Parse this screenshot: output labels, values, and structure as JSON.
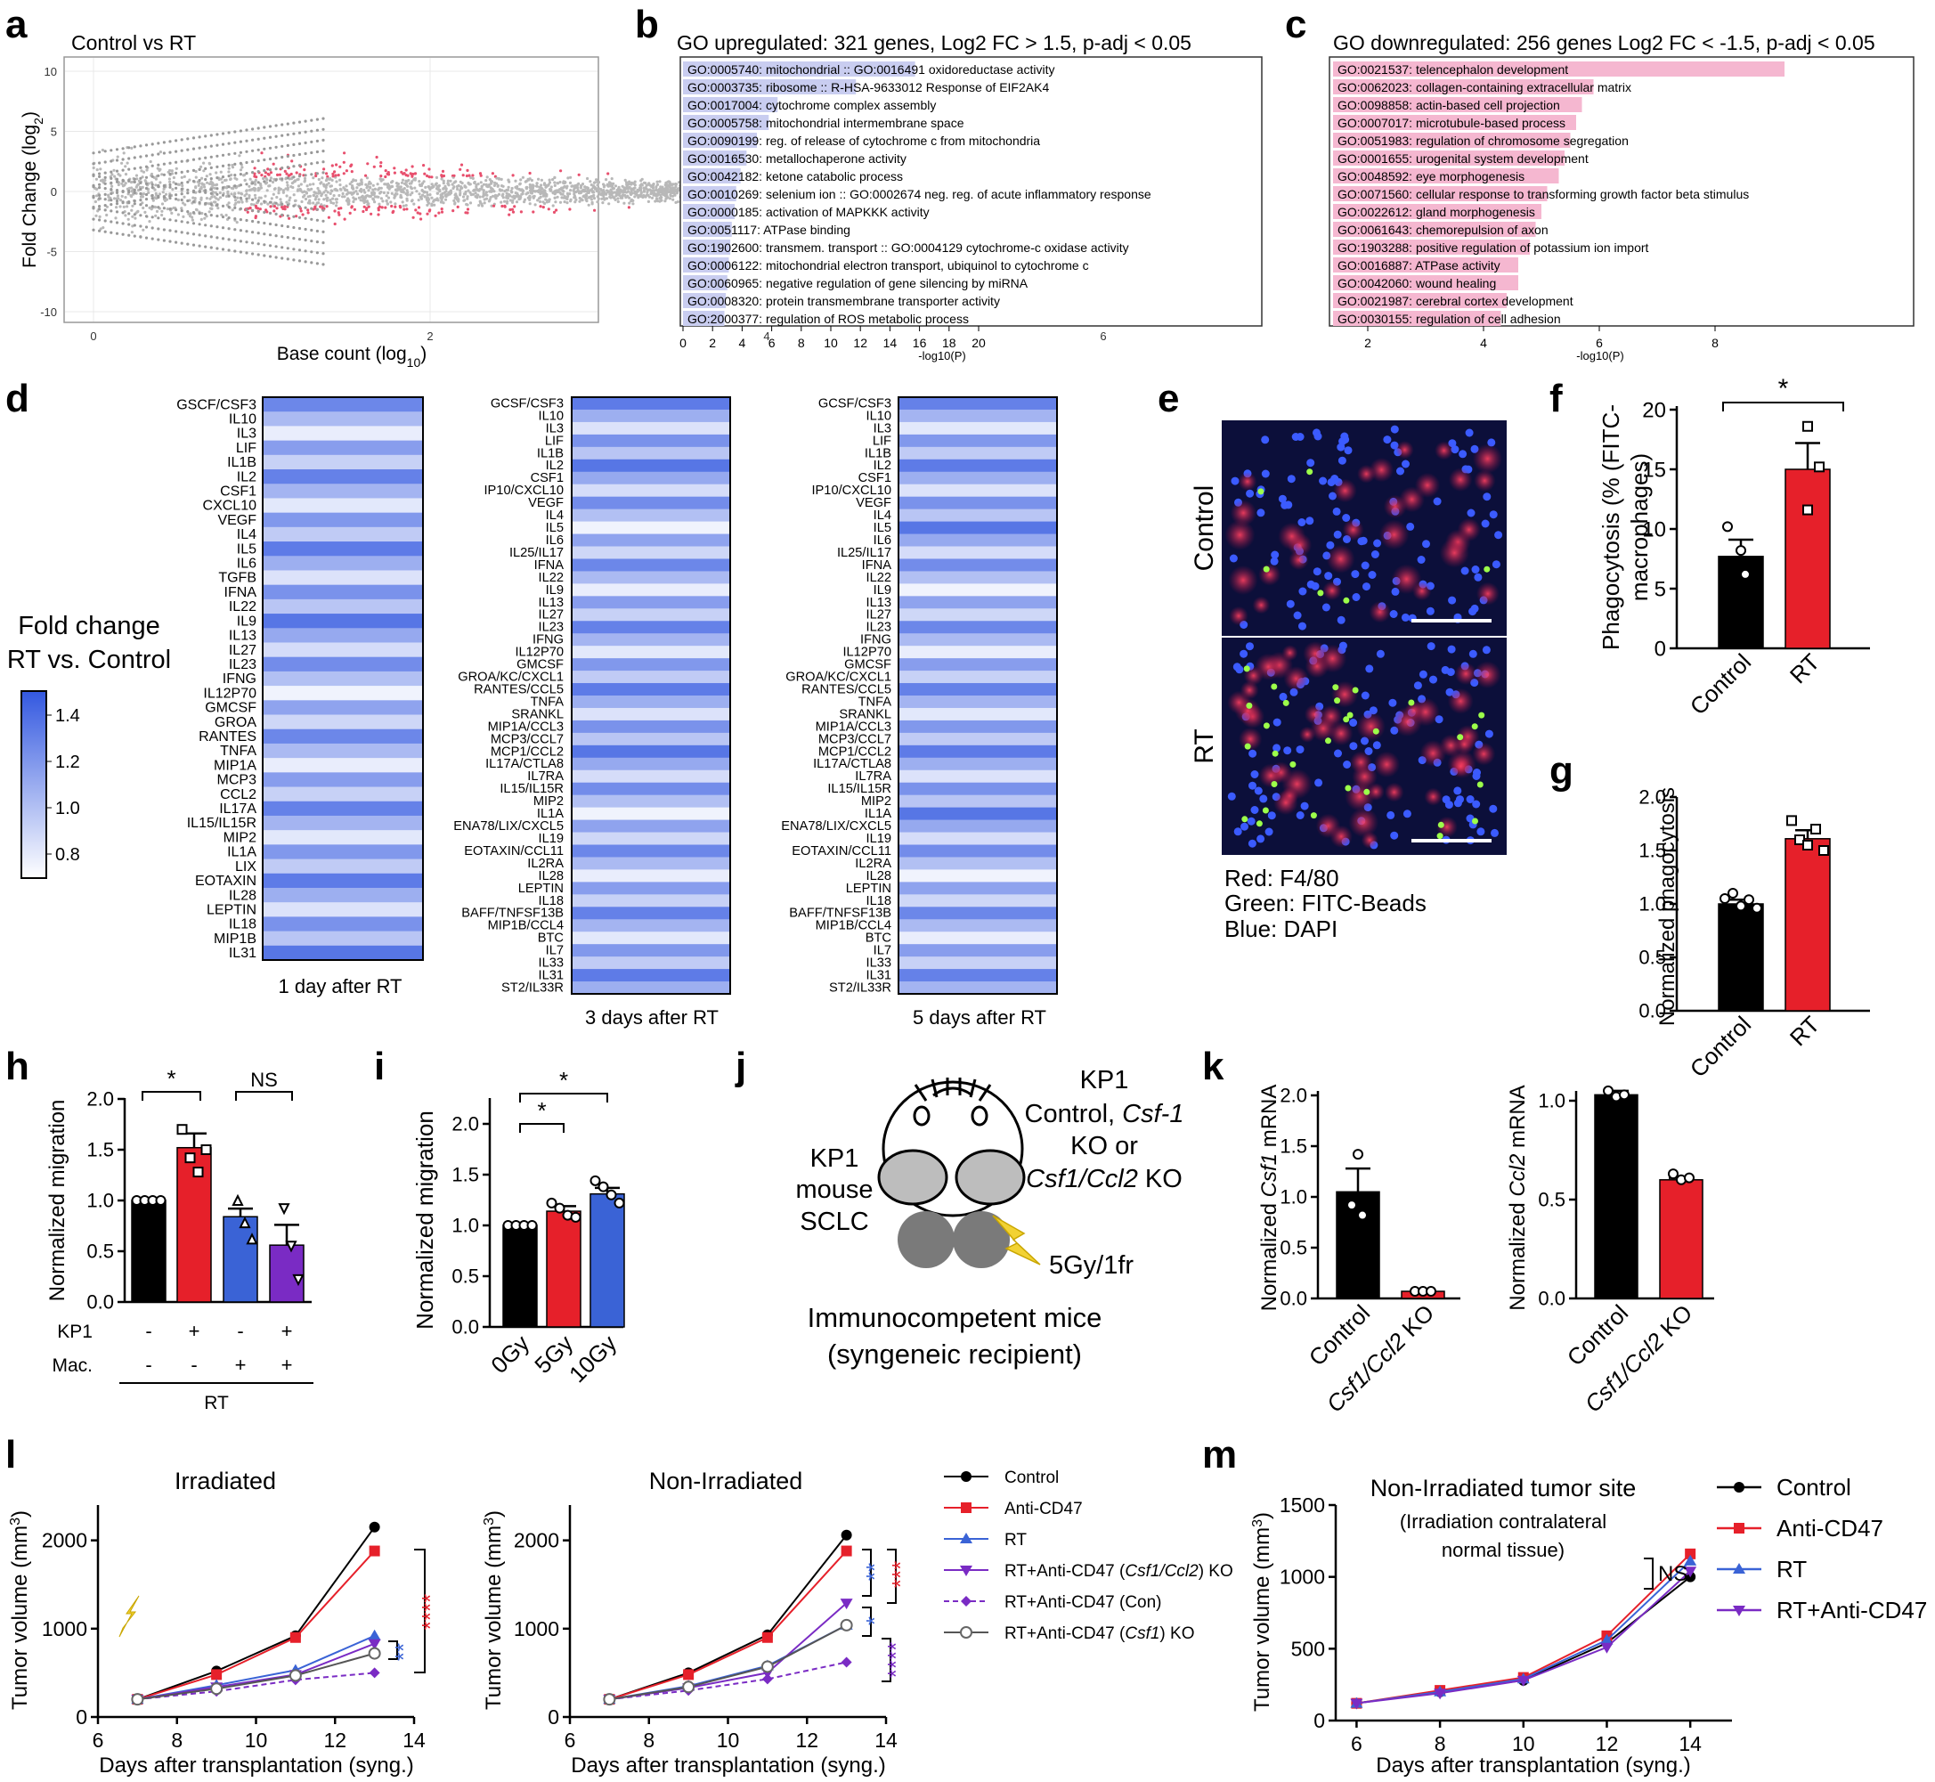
{
  "panel_letters": [
    "a",
    "b",
    "c",
    "d",
    "e",
    "f",
    "g",
    "h",
    "i",
    "j",
    "k",
    "l",
    "m"
  ],
  "a": {
    "title": "Control vs RT",
    "ylabel": "Fold Change (log",
    "ylabel_sub": "2",
    "ylabel_end": ")",
    "xlabel": "Base count (log",
    "xlabel_sub": "10",
    "xlabel_end": ")",
    "yticks": [
      "10",
      "5",
      "0",
      "-5",
      "-10"
    ],
    "xticks": [
      "0",
      "2",
      "4",
      "6"
    ]
  },
  "b": {
    "title": "GO upregulated: 321 genes, Log2 FC > 1.5, p-adj < 0.05",
    "xlabel": "-log10(P)",
    "xticks": [
      "0",
      "2",
      "4",
      "6",
      "8",
      "10",
      "12",
      "14",
      "16",
      "18",
      "20"
    ],
    "terms": [
      "GO:0005740: mitochondrial :: GO:0016491 oxidoreductase activity",
      "GO:0003735: ribosome :: R-HSA-9633012 Response of EIF2AK4",
      "GO:0017004: cytochrome complex assembly",
      "GO:0005758: mitochondrial intermembrane space",
      "GO:0090199: reg. of release of cytochrome c from mitochondria",
      "GO:0016530: metallochaperone activity",
      "GO:0042182: ketone catabolic process",
      "GO:0010269: selenium ion :: GO:0002674 neg. reg. of acute inflammatory response",
      "GO:0000185: activation of MAPKKK activity",
      "GO:0051117: ATPase binding",
      "GO:1902600: transmem. transport :: GO:0004129 cytochrome-c oxidase activity",
      "GO:0006122: mitochondrial electron transport, ubiquinol to cytochrome c",
      "GO:0060965: negative regulation of gene silencing by miRNA",
      "GO:0008320: protein transmembrane transporter activity",
      "GO:2000377: regulation of ROS metabolic process"
    ],
    "values": [
      15.7,
      11.7,
      6.4,
      5.8,
      5.0,
      4.3,
      3.9,
      3.6,
      3.5,
      3.3,
      3.2,
      3.1,
      3.0,
      2.9,
      2.8
    ]
  },
  "c": {
    "title": "GO downregulated: 256 genes Log2 FC < -1.5, p-adj < 0.05",
    "xlabel": "-log10(P)",
    "xticks": [
      "2",
      "4",
      "6",
      "8"
    ],
    "terms": [
      "GO:0021537: telencephalon development",
      "GO:0062023: collagen-containing extracellular matrix",
      "GO:0098858: actin-based cell projection",
      "GO:0007017: microtubule-based process",
      "GO:0051983: regulation of chromosome segregation",
      "GO:0001655: urogenital system development",
      "GO:0048592: eye morphogenesis",
      "GO:0071560: cellular response to transforming growth factor beta stimulus",
      "GO:0022612: gland morphogenesis",
      "GO:0061643: chemorepulsion of axon",
      "GO:1903288: positive regulation of potassium ion import",
      "GO:0016887: ATPase activity",
      "GO:0042060: wound healing",
      "GO:0021987: cerebral cortex development",
      "GO:0030155: regulation of cell adhesion"
    ],
    "values": [
      9.2,
      5.9,
      5.7,
      5.6,
      5.5,
      5.4,
      5.3,
      5.1,
      5.0,
      4.9,
      4.8,
      4.6,
      4.6,
      4.4,
      4.3
    ]
  },
  "d": {
    "legend_title_1": "Fold change",
    "legend_title_2": "RT vs. Control",
    "legend_ticks": [
      "1.4",
      "1.2",
      "1.0",
      "0.8"
    ],
    "hm1": {
      "label": "1 day after RT",
      "rows": [
        "GSCF/CSF3",
        "IL10",
        "IL3",
        "LIF",
        "IL1B",
        "IL2",
        "CSF1",
        "CXCL10",
        "VEGF",
        "IL4",
        "IL5",
        "IL6",
        "TGFB",
        "IFNA",
        "IL22",
        "IL9",
        "IL13",
        "IL27",
        "IL23",
        "IFNG",
        "IL12P70",
        "GMCSF",
        "GROA",
        "RANTES",
        "TNFA",
        "MIP1A",
        "MCP3",
        "CCL2",
        "IL17A",
        "IL15/IL15R",
        "MIP2",
        "IL1A",
        "LIX",
        "EOTAXIN",
        "IL28",
        "LEPTIN",
        "IL18",
        "MIP1B",
        "IL31"
      ]
    },
    "hm2": {
      "label": "3 days after RT",
      "rows": [
        "GCSF/CSF3",
        "IL10",
        "IL3",
        "LIF",
        "IL1B",
        "IL2",
        "CSF1",
        "IP10/CXCL10",
        "VEGF",
        "IL4",
        "IL5",
        "IL6",
        "IL25/IL17",
        "IFNA",
        "IL22",
        "IL9",
        "IL13",
        "IL27",
        "IL23",
        "IFNG",
        "IL12P70",
        "GMCSF",
        "GROA/KC/CXCL1",
        "RANTES/CCL5",
        "TNFA",
        "SRANKL",
        "MIP1A/CCL3",
        "MCP3/CCL7",
        "MCP1/CCL2",
        "IL17A/CTLA8",
        "IL7RA",
        "IL15/IL15R",
        "MIP2",
        "IL1A",
        "ENA78/LIX/CXCL5",
        "IL19",
        "EOTAXIN/CCL11",
        "IL2RA",
        "IL28",
        "LEPTIN",
        "IL18",
        "BAFF/TNFSF13B",
        "MIP1B/CCL4",
        "BTC",
        "IL7",
        "IL33",
        "IL31",
        "ST2/IL33R"
      ]
    },
    "hm3": {
      "label": "5 days after RT",
      "rows": [
        "GCSF/CSF3",
        "IL10",
        "IL3",
        "LIF",
        "IL1B",
        "IL2",
        "CSF1",
        "IP10/CXCL10",
        "VEGF",
        "IL4",
        "IL5",
        "IL6",
        "IL25/IL17",
        "IFNA",
        "IL22",
        "IL9",
        "IL13",
        "IL27",
        "IL23",
        "IFNG",
        "IL12P70",
        "GMCSF",
        "GROA/KC/CXCL1",
        "RANTES/CCL5",
        "TNFA",
        "SRANKL",
        "MIP1A/CCL3",
        "MCP3/CCL7",
        "MCP1/CCL2",
        "IL17A/CTLA8",
        "IL7RA",
        "IL15/IL15R",
        "MIP2",
        "IL1A",
        "ENA78/LIX/CXCL5",
        "IL19",
        "EOTAXIN/CCL11",
        "IL2RA",
        "IL28",
        "LEPTIN",
        "IL18",
        "BAFF/TNFSF13B",
        "MIP1B/CCL4",
        "BTC",
        "IL7",
        "IL33",
        "IL31",
        "ST2/IL33R"
      ]
    }
  },
  "e": {
    "control": "Control",
    "rt": "RT",
    "legend": [
      "Red: F4/80",
      "Green: FITC-Beads",
      "Blue: DAPI"
    ]
  },
  "f": {
    "ylabel_1": "Phagocytosis (% (FITC-",
    "ylabel_2": "macrophages)",
    "yticks": [
      "0",
      "5",
      "10",
      "15",
      "20"
    ],
    "categories": [
      "Control",
      "RT"
    ],
    "values": [
      7.7,
      15.0
    ],
    "sig": "*"
  },
  "g": {
    "ylabel": "Normalized phagocytosis",
    "yticks": [
      "0.0",
      "0.5",
      "1.0",
      "1.5",
      "2.0"
    ],
    "categories": [
      "Control",
      "RT"
    ],
    "values": [
      1.0,
      1.61
    ]
  },
  "h": {
    "ylabel": "Normalized migration",
    "yticks": [
      "0.0",
      "0.5",
      "1.0",
      "1.5",
      "2.0"
    ],
    "values": [
      1.0,
      1.52,
      0.84,
      0.56
    ],
    "sig1": "*",
    "sig2": "NS",
    "row1": "KP1",
    "row2": "Mac.",
    "kp1": [
      "-",
      "+",
      "-",
      "+"
    ],
    "mac": [
      "-",
      "-",
      "+",
      "+"
    ],
    "group": "RT"
  },
  "i": {
    "ylabel": "Normalized migration",
    "yticks": [
      "0.0",
      "0.5",
      "1.0",
      "1.5",
      "2.0"
    ],
    "categories": [
      "0Gy",
      "5Gy",
      "10Gy"
    ],
    "values": [
      1.0,
      1.14,
      1.31
    ],
    "sig": "*"
  },
  "j": {
    "kp1_1": "KP1",
    "kp1_2": "mouse",
    "kp1_3": "SCLC",
    "right_1": "KP1",
    "right_2": "Control, ",
    "right_2i": "Csf-1",
    "right_3": "KO or",
    "right_4i": "Csf1/Ccl2",
    "right_4": " KO",
    "dose": "5Gy/1fr",
    "bottom_1": "Immunocompetent mice",
    "bottom_2": "(syngeneic recipient)"
  },
  "k": {
    "left": {
      "ylabel_pre": "Normalized ",
      "ylabel_i": "Csf1",
      "ylabel_post": " mRNA",
      "yticks": [
        "0.0",
        "0.5",
        "1.0",
        "1.5",
        "2.0"
      ],
      "values": [
        1.05,
        0.07
      ]
    },
    "right": {
      "ylabel_pre": "Normalized ",
      "ylabel_i": "Ccl2",
      "ylabel_post": " mRNA",
      "yticks": [
        "0.0",
        "0.5",
        "1.0"
      ],
      "values": [
        1.03,
        0.6
      ]
    },
    "cat1": "Control",
    "cat2_i": "Csf1/Ccl2",
    "cat2": " KO"
  },
  "l": {
    "title1": "Irradiated",
    "title2": "Non-Irradiated",
    "ylabel": "Tumor volume (mm",
    "xlabel": "Days after transplantation (syng.)",
    "xticks": [
      "6",
      "8",
      "10",
      "12",
      "14"
    ],
    "yticks": [
      "0",
      "1000",
      "2000"
    ],
    "x": [
      7,
      9,
      11,
      13
    ],
    "irr": [
      [
        200,
        520,
        920,
        2150
      ],
      [
        200,
        480,
        900,
        1880
      ],
      [
        200,
        360,
        530,
        920
      ],
      [
        200,
        340,
        480,
        830
      ],
      [
        200,
        290,
        420,
        500
      ],
      [
        200,
        320,
        470,
        720
      ]
    ],
    "non": [
      [
        200,
        500,
        930,
        2060
      ],
      [
        200,
        480,
        900,
        1880
      ],
      [
        200,
        350,
        580,
        1040
      ],
      [
        200,
        330,
        500,
        1290
      ],
      [
        200,
        300,
        430,
        620
      ],
      [
        200,
        340,
        570,
        1040
      ]
    ],
    "sig_irr1": "****",
    "sig_irr2": "**",
    "sig_non1": "***",
    "sig_non2": "**",
    "sig_non3": "*",
    "sig_non4": "****",
    "legend": [
      "Control",
      "Anti-CD47",
      "RT",
      "RT+Anti-CD47 (",
      "RT+Anti-CD47 (Con)",
      "RT+Anti-CD47 ("
    ],
    "legend_i": [
      "",
      "",
      "",
      "Csf1/Ccl2",
      "",
      "Csf1"
    ],
    "legend_end": [
      "",
      "",
      "",
      ") KO",
      "",
      ") KO"
    ]
  },
  "m": {
    "title1": "Non-Irradiated tumor site",
    "title2": "(Irradiation contralateral",
    "title3": "normal tissue)",
    "ylabel": "Tumor volume (mm",
    "xlabel": "Days after transplantation (syng.)",
    "xticks": [
      "6",
      "8",
      "10",
      "12",
      "14"
    ],
    "yticks": [
      "0",
      "500",
      "1000",
      "1500"
    ],
    "x": [
      6,
      8,
      10,
      12,
      14
    ],
    "series": [
      [
        120,
        200,
        280,
        540,
        1000
      ],
      [
        120,
        210,
        300,
        590,
        1160
      ],
      [
        120,
        200,
        290,
        560,
        1110
      ],
      [
        120,
        190,
        280,
        510,
        1040
      ]
    ],
    "sig": "NS",
    "legend": [
      "Control",
      "Anti-CD47",
      "RT",
      "RT+Anti-CD47"
    ]
  },
  "colors": {
    "black": "#000000",
    "red": "#e6202a",
    "blue": "#3a63d6",
    "purple": "#7a2bc4",
    "go_up": "#c9cdf0",
    "go_down": "#f5b7d0",
    "hm_dark": "#3358e0",
    "hm_light": "#ffffff"
  }
}
